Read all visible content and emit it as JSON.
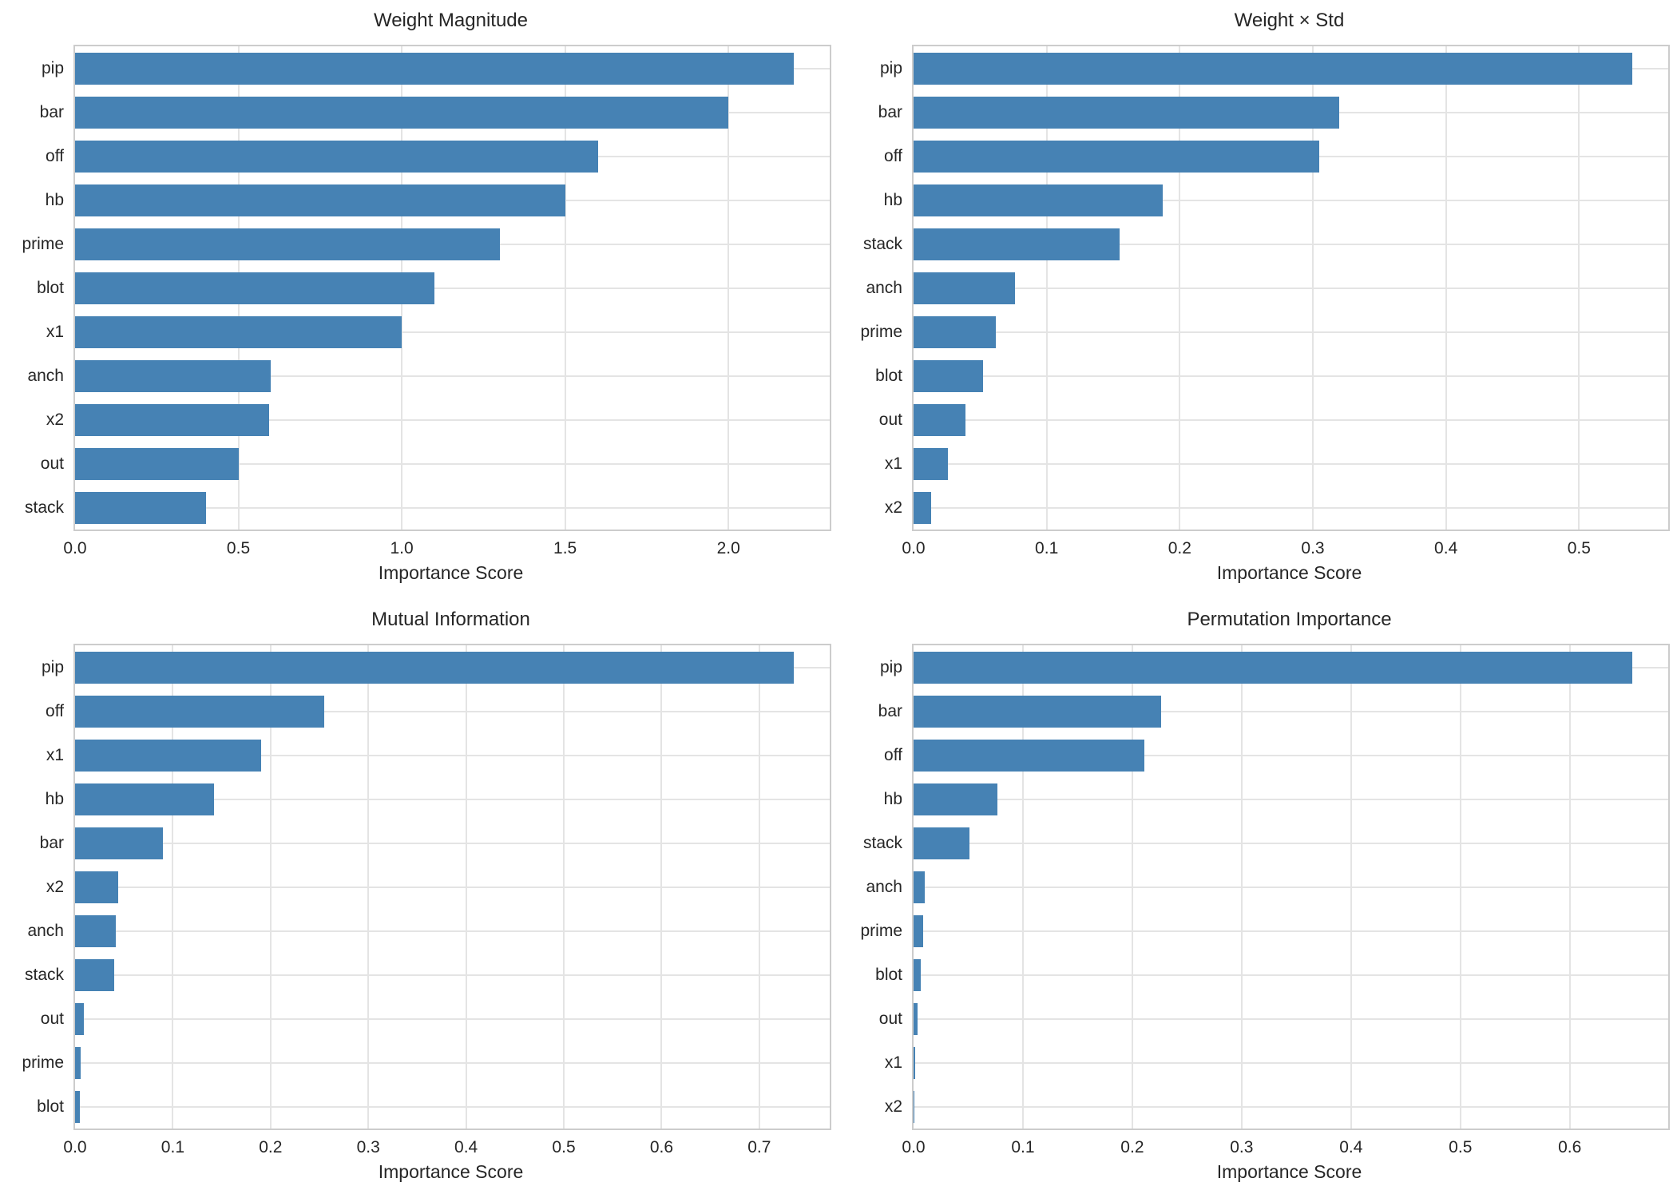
{
  "figure": {
    "background_color": "#ffffff",
    "bar_color": "#4682b4",
    "grid_color": "#e4e4e4",
    "spine_color": "#cccccc",
    "text_color": "#262626",
    "grid": true,
    "layout": "2x2"
  },
  "chart_data": [
    {
      "type": "bar",
      "orientation": "horizontal",
      "title": "Weight Magnitude",
      "xlabel": "Importance Score",
      "categories": [
        "pip",
        "bar",
        "off",
        "hb",
        "prime",
        "blot",
        "x1",
        "anch",
        "x2",
        "out",
        "stack"
      ],
      "values": [
        2.2,
        2.0,
        1.6,
        1.5,
        1.3,
        1.1,
        1.0,
        0.6,
        0.595,
        0.5,
        0.4
      ],
      "xlim": [
        0,
        2.31
      ],
      "xticks": [
        0.0,
        0.5,
        1.0,
        1.5,
        2.0
      ],
      "xtick_labels": [
        "0.0",
        "0.5",
        "1.0",
        "1.5",
        "2.0"
      ]
    },
    {
      "type": "bar",
      "orientation": "horizontal",
      "title": "Weight × Std",
      "xlabel": "Importance Score",
      "categories": [
        "pip",
        "bar",
        "off",
        "hb",
        "stack",
        "anch",
        "prime",
        "blot",
        "out",
        "x1",
        "x2"
      ],
      "values": [
        0.54,
        0.32,
        0.305,
        0.187,
        0.155,
        0.076,
        0.062,
        0.052,
        0.039,
        0.026,
        0.013
      ],
      "xlim": [
        0,
        0.567
      ],
      "xticks": [
        0.0,
        0.1,
        0.2,
        0.3,
        0.4,
        0.5
      ],
      "xtick_labels": [
        "0.0",
        "0.1",
        "0.2",
        "0.3",
        "0.4",
        "0.5"
      ]
    },
    {
      "type": "bar",
      "orientation": "horizontal",
      "title": "Mutual Information",
      "xlabel": "Importance Score",
      "categories": [
        "pip",
        "off",
        "x1",
        "hb",
        "bar",
        "x2",
        "anch",
        "stack",
        "out",
        "prime",
        "blot"
      ],
      "values": [
        0.735,
        0.255,
        0.19,
        0.142,
        0.09,
        0.044,
        0.042,
        0.04,
        0.009,
        0.006,
        0.005
      ],
      "xlim": [
        0,
        0.772
      ],
      "xticks": [
        0.0,
        0.1,
        0.2,
        0.3,
        0.4,
        0.5,
        0.6,
        0.7
      ],
      "xtick_labels": [
        "0.0",
        "0.1",
        "0.2",
        "0.3",
        "0.4",
        "0.5",
        "0.6",
        "0.7"
      ]
    },
    {
      "type": "bar",
      "orientation": "horizontal",
      "title": "Permutation Importance",
      "xlabel": "Importance Score",
      "categories": [
        "pip",
        "bar",
        "off",
        "hb",
        "stack",
        "anch",
        "prime",
        "blot",
        "out",
        "x1",
        "x2"
      ],
      "values": [
        0.657,
        0.226,
        0.211,
        0.077,
        0.051,
        0.0105,
        0.0085,
        0.0065,
        0.0035,
        0.0012,
        0.0004
      ],
      "xlim": [
        0,
        0.69
      ],
      "xticks": [
        0.0,
        0.1,
        0.2,
        0.3,
        0.4,
        0.5,
        0.6
      ],
      "xtick_labels": [
        "0.0",
        "0.1",
        "0.2",
        "0.3",
        "0.4",
        "0.5",
        "0.6"
      ]
    }
  ]
}
